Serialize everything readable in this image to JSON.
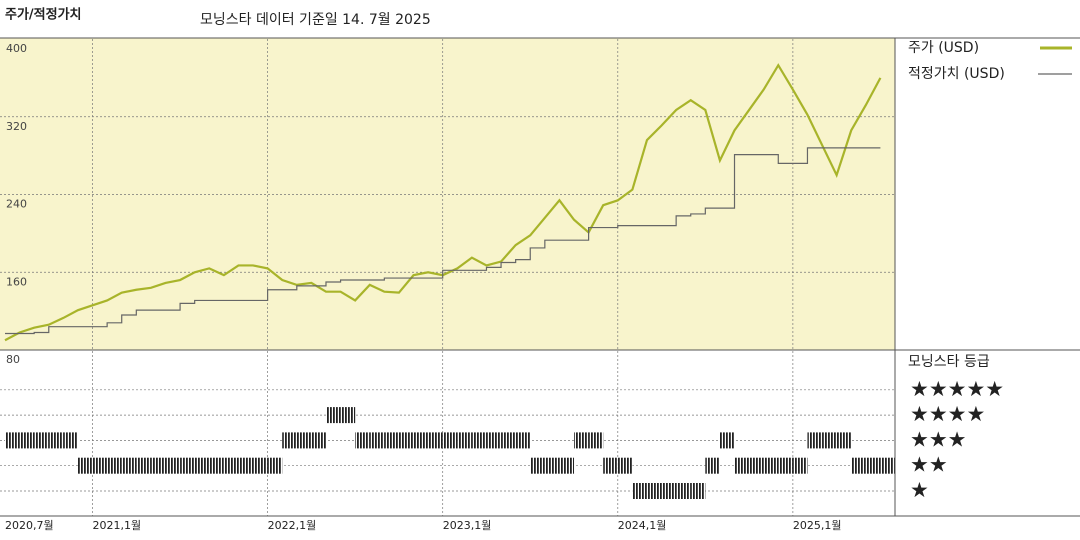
{
  "chart_data": [
    {
      "type": "line",
      "title": "주가/적정가치",
      "subtitle": "모닝스타 데이터 기준일 14. 7월 2025",
      "x": [
        "2020-07",
        "2020-08",
        "2020-09",
        "2020-10",
        "2020-11",
        "2020-12",
        "2021-01",
        "2021-02",
        "2021-03",
        "2021-04",
        "2021-05",
        "2021-06",
        "2021-07",
        "2021-08",
        "2021-09",
        "2021-10",
        "2021-11",
        "2021-12",
        "2022-01",
        "2022-02",
        "2022-03",
        "2022-04",
        "2022-05",
        "2022-06",
        "2022-07",
        "2022-08",
        "2022-09",
        "2022-10",
        "2022-11",
        "2022-12",
        "2023-01",
        "2023-02",
        "2023-03",
        "2023-04",
        "2023-05",
        "2023-06",
        "2023-07",
        "2023-08",
        "2023-09",
        "2023-10",
        "2023-11",
        "2023-12",
        "2024-01",
        "2024-02",
        "2024-03",
        "2024-04",
        "2024-05",
        "2024-06",
        "2024-07",
        "2024-08",
        "2024-09",
        "2024-10",
        "2024-11",
        "2024-12",
        "2025-01",
        "2025-02",
        "2025-03",
        "2025-04",
        "2025-05",
        "2025-06",
        "2025-07"
      ],
      "series": [
        {
          "name": "주가 (USD)",
          "color": "#a8b42a",
          "values": [
            90,
            98,
            103,
            106,
            113,
            121,
            126,
            131,
            139,
            142,
            144,
            149,
            152,
            160,
            164,
            157,
            167,
            167,
            164,
            152,
            147,
            149,
            140,
            140,
            131,
            147,
            140,
            139,
            157,
            160,
            157,
            164,
            175,
            167,
            171,
            188,
            198,
            216,
            234,
            214,
            201,
            229,
            234,
            245,
            296,
            311,
            327,
            337,
            327,
            275,
            306,
            327,
            348,
            373,
            348,
            322,
            291,
            260,
            306,
            332,
            360
          ]
        },
        {
          "name": "적정가치 (USD)",
          "color": "#666666",
          "step": true,
          "values": [
            97,
            97,
            98,
            104,
            104,
            104,
            104,
            108,
            116,
            121,
            121,
            121,
            128,
            131,
            131,
            131,
            131,
            131,
            142,
            142,
            146,
            146,
            150,
            152,
            152,
            152,
            154,
            154,
            154,
            154,
            162,
            162,
            162,
            165,
            170,
            173,
            185,
            193,
            193,
            193,
            206,
            206,
            208,
            208,
            208,
            208,
            218,
            220,
            226,
            226,
            281,
            281,
            281,
            272,
            272,
            288,
            288,
            288,
            288,
            288,
            288
          ]
        }
      ],
      "xlim": [
        "2020-07",
        "2025-08"
      ],
      "xticks": [
        {
          "value": "2020-07",
          "label": "2020,7월"
        },
        {
          "value": "2021-01",
          "label": "2021,1월"
        },
        {
          "value": "2022-01",
          "label": "2022,1월"
        },
        {
          "value": "2023-01",
          "label": "2023,1월"
        },
        {
          "value": "2024-01",
          "label": "2024,1월"
        },
        {
          "value": "2025-01",
          "label": "2025,1월"
        }
      ],
      "ylim": [
        80,
        400
      ],
      "yticks": [
        80,
        160,
        240,
        320,
        400
      ],
      "grid": true
    },
    {
      "type": "rating",
      "title": "모닝스타 등급",
      "levels": [
        "★",
        "★★",
        "★★★",
        "★★★★",
        "★★★★★"
      ],
      "values": [
        3,
        3,
        3,
        3,
        3,
        2,
        2,
        2,
        2,
        2,
        2,
        2,
        2,
        2,
        2,
        2,
        2,
        2,
        2,
        3,
        3,
        3,
        4,
        4,
        3,
        3,
        3,
        3,
        3,
        3,
        3,
        3,
        3,
        3,
        3,
        3,
        2,
        2,
        2,
        3,
        3,
        2,
        2,
        1,
        1,
        1,
        1,
        1,
        2,
        3,
        2,
        2,
        2,
        2,
        2,
        3,
        3,
        3,
        2,
        2,
        2
      ],
      "color": "#222222"
    }
  ]
}
